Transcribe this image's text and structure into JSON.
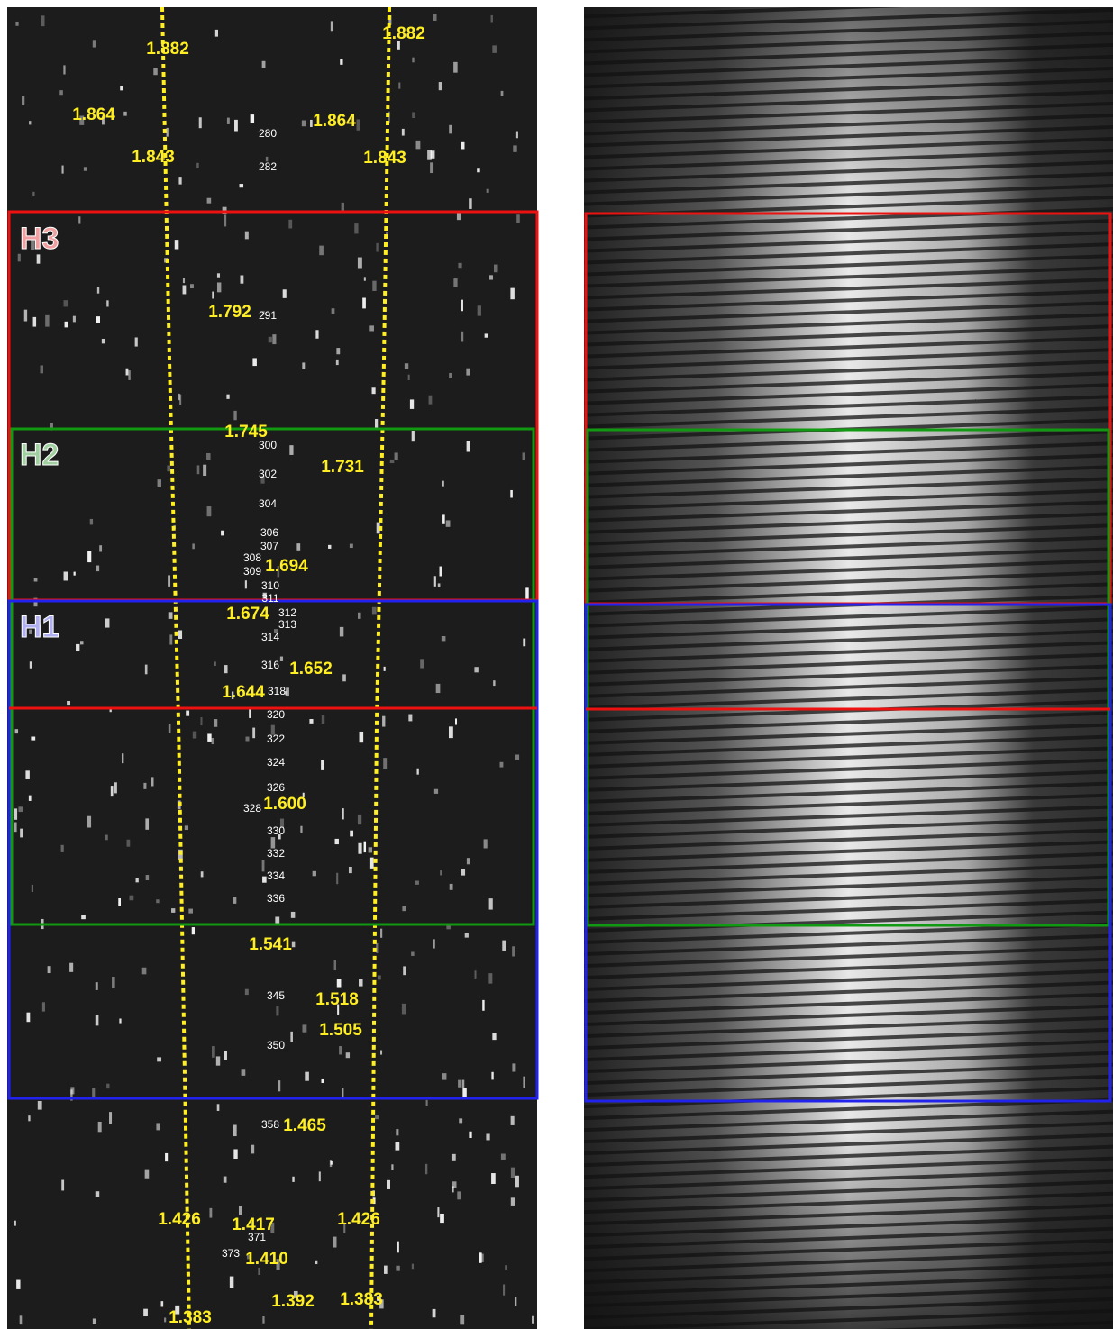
{
  "left_panel": {
    "region_labels": [
      "H3",
      "H2",
      "H1"
    ],
    "wavelength_labels": [
      "1.882",
      "1.882",
      "1.864",
      "1.864",
      "1.843",
      "1.843",
      "1.792",
      "1.745",
      "1.731",
      "1.694",
      "1.674",
      "1.652",
      "1.644",
      "1.600",
      "1.541",
      "1.518",
      "1.505",
      "1.465",
      "1.426",
      "1.417",
      "1.426",
      "1.410",
      "1.392",
      "1.383",
      "1.383"
    ],
    "order_labels": [
      "280",
      "282",
      "291",
      "300",
      "302",
      "304",
      "306",
      "307",
      "308",
      "309",
      "310",
      "311",
      "312",
      "313",
      "314",
      "316",
      "318",
      "320",
      "322",
      "324",
      "326",
      "328",
      "330",
      "332",
      "334",
      "336",
      "345",
      "350",
      "358",
      "371",
      "373"
    ]
  }
}
